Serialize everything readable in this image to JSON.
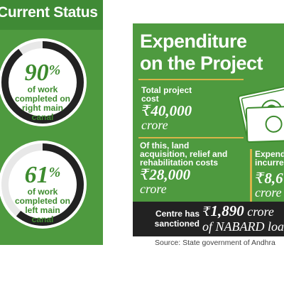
{
  "status_panel": {
    "title": "Current Status",
    "colors": {
      "panel": "#4e9a3f",
      "ring": "#222222",
      "accent": "#3d8b2e"
    },
    "stats": [
      {
        "value": "90",
        "unit": "%",
        "caption_lines": [
          "of work",
          "completed on",
          "right main",
          "canal"
        ],
        "fraction": 0.9
      },
      {
        "value": "61",
        "unit": "%",
        "caption_lines": [
          "of work",
          "completed on",
          "left main",
          "canal"
        ],
        "fraction": 0.61
      }
    ]
  },
  "expenditure_panel": {
    "title_lines": [
      "Expenditure",
      "on the Project"
    ],
    "icon": "rupee-notes-icon",
    "colors": {
      "panel": "#4e9a3f",
      "divider": "#d9b449",
      "band": "#222222"
    },
    "total": {
      "label_lines": [
        "Total project",
        "cost"
      ],
      "currency": "₹",
      "amount": "40,000",
      "unit": "crore"
    },
    "land": {
      "label_lines": [
        "Of this, land",
        "acquisition, relief and",
        "rehabilitation costs"
      ],
      "currency": "₹",
      "amount": "28,000",
      "unit": "crore"
    },
    "incurred": {
      "label_lines": [
        "Expend",
        "incurre"
      ],
      "currency": "₹",
      "amount": "8,6",
      "unit": "crore"
    },
    "sanction": {
      "label_lines": [
        "Centre has",
        "sanctioned"
      ],
      "currency": "₹",
      "amount": "1,890",
      "unit": "crore",
      "sub": "of NABARD loa"
    }
  },
  "source": "Source: State government of Andhra"
}
